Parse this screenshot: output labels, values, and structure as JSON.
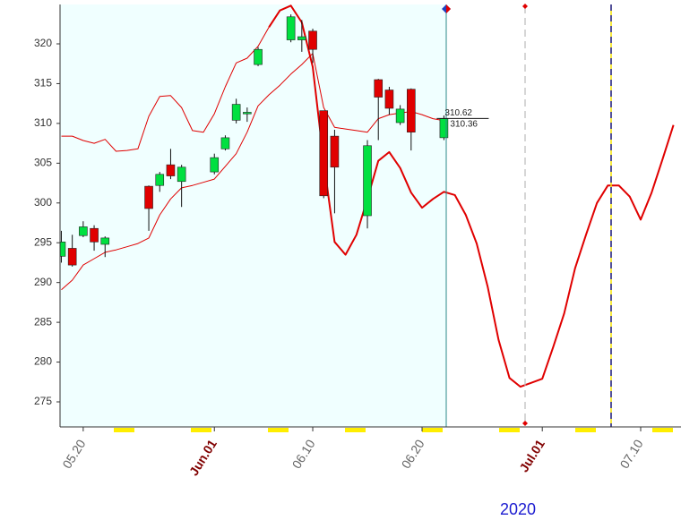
{
  "chart_data": {
    "type": "candlestick",
    "xlim": [
      138.88,
      195.69
    ],
    "ylim": [
      271.85,
      324.95
    ],
    "yticks": [
      275,
      280,
      285,
      290,
      295,
      300,
      305,
      310,
      315,
      320
    ],
    "xticks": [
      {
        "value": 141,
        "label": "05.20",
        "color": "#666666"
      },
      {
        "value": 153,
        "label": "Jun.01",
        "color": "#800000"
      },
      {
        "value": 162,
        "label": "06.10",
        "color": "#666666"
      },
      {
        "value": 172,
        "label": "06.20",
        "color": "#666666"
      },
      {
        "value": 183,
        "label": "Jul.01",
        "color": "#800000"
      },
      {
        "value": 192,
        "label": "07.10",
        "color": "#666666"
      }
    ],
    "year_label": "2020",
    "up_color": "#00e040",
    "down_color": "#e00000",
    "candles": {
      "x": [
        139,
        140,
        141,
        142,
        143,
        147,
        148,
        149,
        150,
        153,
        154,
        155,
        156,
        157,
        160,
        161,
        162,
        163,
        164,
        167,
        168,
        169,
        170,
        171,
        174
      ],
      "open": [
        293.3,
        294.3,
        295.9,
        296.8,
        294.8,
        302.1,
        302.2,
        304.8,
        302.7,
        303.9,
        306.8,
        310.4,
        311.2,
        317.4,
        320.5,
        320.5,
        321.6,
        311.6,
        308.4,
        298.4,
        315.5,
        314.2,
        310.1,
        314.3,
        308.2
      ],
      "high": [
        296.5,
        296.0,
        297.7,
        297.2,
        295.8,
        302.2,
        303.9,
        306.8,
        304.8,
        306.2,
        308.5,
        313.1,
        312.0,
        319.6,
        323.7,
        323.0,
        321.9,
        311.6,
        309.2,
        307.9,
        315.6,
        314.6,
        312.3,
        314.4,
        311.0
      ],
      "low": [
        292.5,
        292.0,
        295.7,
        294.0,
        293.2,
        296.5,
        301.4,
        303.0,
        299.5,
        303.6,
        306.6,
        310.0,
        310.2,
        317.2,
        320.2,
        319.0,
        317.6,
        300.6,
        298.7,
        296.8,
        307.9,
        311.1,
        309.8,
        306.6,
        307.9
      ],
      "close": [
        295.1,
        292.2,
        297.0,
        295.1,
        295.6,
        299.3,
        303.6,
        303.4,
        304.5,
        305.7,
        308.2,
        312.4,
        311.4,
        319.3,
        323.4,
        320.9,
        319.3,
        300.9,
        304.5,
        307.2,
        313.3,
        311.9,
        311.8,
        308.9,
        310.62
      ]
    },
    "last_labels": [
      310.62,
      310.36
    ],
    "lines": [
      {
        "color": "#e00000",
        "width": 1,
        "x": [
          139,
          140,
          141,
          142,
          143,
          144,
          145,
          146,
          147,
          148,
          149,
          150,
          151,
          152,
          153,
          154,
          155,
          156,
          157,
          158,
          159,
          160
        ],
        "values": [
          308.4,
          308.4,
          307.85,
          307.5,
          308.0,
          306.5,
          306.6,
          306.8,
          310.9,
          313.4,
          313.5,
          312.0,
          309.1,
          308.9,
          311.2,
          314.6,
          317.6,
          318.2,
          319.7,
          322.1,
          324.2,
          324.8
        ]
      },
      {
        "color": "#e00000",
        "width": 1,
        "x": [
          139,
          140,
          141,
          142,
          143,
          144,
          145,
          146,
          147,
          148,
          149,
          150,
          151,
          152,
          153,
          154,
          155,
          156,
          157,
          158,
          159,
          160,
          161,
          162,
          163,
          164,
          165,
          166,
          167,
          168,
          169,
          170,
          171,
          172,
          173,
          174
        ],
        "values": [
          289.1,
          290.3,
          292.2,
          293.0,
          293.8,
          294.1,
          294.5,
          294.9,
          295.6,
          298.5,
          300.5,
          301.9,
          302.2,
          302.6,
          303.0,
          304.6,
          306.2,
          308.9,
          312.2,
          313.6,
          314.8,
          316.2,
          317.4,
          318.8,
          312.0,
          309.5,
          309.3,
          309.1,
          308.9,
          310.6,
          311.1,
          311.3,
          311.5,
          311.1,
          310.6,
          310.36
        ]
      },
      {
        "color": "#e00000",
        "width": 2,
        "x": [
          158,
          159,
          160,
          161,
          162,
          163,
          164,
          165,
          166,
          167,
          168,
          169,
          170,
          171,
          172,
          173,
          174,
          175,
          176,
          177,
          178,
          179,
          180,
          181,
          182,
          183,
          184,
          185,
          186,
          187,
          188,
          189,
          190,
          191,
          192,
          193,
          194,
          195
        ],
        "values": [
          322.1,
          324.2,
          324.8,
          322.7,
          317.1,
          305.3,
          295.1,
          293.5,
          296.0,
          300.5,
          305.3,
          306.4,
          304.4,
          301.3,
          299.4,
          300.5,
          301.4,
          301.0,
          298.5,
          294.9,
          289.5,
          282.8,
          278.0,
          276.9,
          277.4,
          277.9,
          281.9,
          286.1,
          291.8,
          296.0,
          300.0,
          302.2,
          302.2,
          300.8,
          297.9,
          301.3,
          305.5,
          309.8
        ]
      }
    ]
  }
}
